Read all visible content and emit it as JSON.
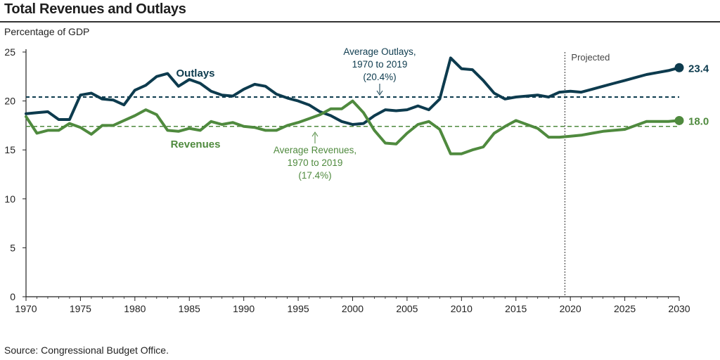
{
  "title": "Total Revenues and Outlays",
  "ylabel": "Percentage of GDP",
  "source": "Source: Congressional Budget Office.",
  "projected_label": "Projected",
  "colors": {
    "outlays": "#0d3b4e",
    "revenues": "#4f8a3e",
    "axis": "#222222"
  },
  "chart_data": {
    "type": "line",
    "xlim": [
      1970,
      2030
    ],
    "ylim": [
      0,
      25
    ],
    "xticks": [
      1970,
      1975,
      1980,
      1985,
      1990,
      1995,
      2000,
      2005,
      2010,
      2015,
      2020,
      2025,
      2030
    ],
    "yticks": [
      0,
      5,
      10,
      15,
      20,
      25
    ],
    "projected_start": 2019.5,
    "series": [
      {
        "name": "Outlays",
        "x": [
          1970,
          1971,
          1972,
          1973,
          1974,
          1975,
          1976,
          1977,
          1978,
          1979,
          1980,
          1981,
          1982,
          1983,
          1984,
          1985,
          1986,
          1987,
          1988,
          1989,
          1990,
          1991,
          1992,
          1993,
          1994,
          1995,
          1996,
          1997,
          1998,
          1999,
          2000,
          2001,
          2002,
          2003,
          2004,
          2005,
          2006,
          2007,
          2008,
          2009,
          2010,
          2011,
          2012,
          2013,
          2014,
          2015,
          2016,
          2017,
          2018,
          2019,
          2020,
          2021,
          2022,
          2023,
          2024,
          2025,
          2026,
          2027,
          2028,
          2029,
          2030
        ],
        "values": [
          18.7,
          18.8,
          18.9,
          18.1,
          18.1,
          20.6,
          20.8,
          20.2,
          20.1,
          19.6,
          21.1,
          21.6,
          22.5,
          22.8,
          21.5,
          22.2,
          21.8,
          21.0,
          20.6,
          20.5,
          21.2,
          21.7,
          21.5,
          20.7,
          20.3,
          20.0,
          19.6,
          18.9,
          18.5,
          17.9,
          17.6,
          17.7,
          18.5,
          19.1,
          19.0,
          19.1,
          19.5,
          19.1,
          20.2,
          24.4,
          23.3,
          23.2,
          22.1,
          20.8,
          20.2,
          20.4,
          20.5,
          20.6,
          20.4,
          20.9,
          21.0,
          20.9,
          21.2,
          21.5,
          21.8,
          22.1,
          22.4,
          22.7,
          22.9,
          23.1,
          23.4
        ],
        "end_label": "23.4",
        "label": "Outlays",
        "average_label": [
          "Average Outlays,",
          "1970 to 2019",
          "(20.4%)"
        ]
      },
      {
        "name": "Revenues",
        "x": [
          1970,
          1971,
          1972,
          1973,
          1974,
          1975,
          1976,
          1977,
          1978,
          1979,
          1980,
          1981,
          1982,
          1983,
          1984,
          1985,
          1986,
          1987,
          1988,
          1989,
          1990,
          1991,
          1992,
          1993,
          1994,
          1995,
          1996,
          1997,
          1998,
          1999,
          2000,
          2001,
          2002,
          2003,
          2004,
          2005,
          2006,
          2007,
          2008,
          2009,
          2010,
          2011,
          2012,
          2013,
          2014,
          2015,
          2016,
          2017,
          2018,
          2019,
          2020,
          2021,
          2022,
          2023,
          2024,
          2025,
          2026,
          2027,
          2028,
          2029,
          2030
        ],
        "values": [
          18.4,
          16.7,
          17.0,
          17.0,
          17.7,
          17.3,
          16.6,
          17.5,
          17.5,
          18.0,
          18.5,
          19.1,
          18.6,
          17.0,
          16.9,
          17.2,
          17.0,
          17.9,
          17.6,
          17.8,
          17.4,
          17.3,
          17.0,
          17.0,
          17.5,
          17.8,
          18.2,
          18.6,
          19.2,
          19.2,
          20.0,
          18.8,
          17.0,
          15.7,
          15.6,
          16.7,
          17.6,
          17.9,
          17.1,
          14.6,
          14.6,
          15.0,
          15.3,
          16.7,
          17.4,
          18.0,
          17.6,
          17.2,
          16.3,
          16.3,
          16.4,
          16.5,
          16.7,
          16.9,
          17.0,
          17.1,
          17.5,
          17.9,
          17.9,
          17.9,
          18.0
        ],
        "end_label": "18.0",
        "label": "Revenues",
        "average_label": [
          "Average Revenues,",
          "1970 to 2019",
          "(17.4%)"
        ]
      }
    ],
    "averages": [
      {
        "name": "Average Outlays, 1970 to 2019",
        "value": 20.4
      },
      {
        "name": "Average Revenues, 1970 to 2019",
        "value": 17.4
      }
    ]
  }
}
